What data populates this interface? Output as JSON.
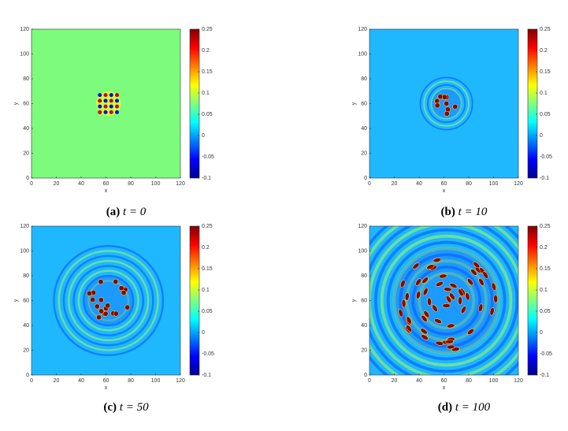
{
  "chart_data": [
    {
      "type": "heatmap",
      "label": "(a)",
      "equation": "t = 0",
      "xlabel": "x",
      "ylabel": "y",
      "xlim": [
        0,
        120
      ],
      "xticks": [
        0,
        20,
        40,
        60,
        80,
        100,
        120
      ],
      "ylim": [
        0,
        120
      ],
      "yticks": [
        0,
        20,
        40,
        60,
        80,
        100,
        120
      ],
      "clim": [
        -0.1,
        0.25
      ],
      "cticks": [
        -0.1,
        -0.05,
        0,
        0.05,
        0.1,
        0.15,
        0.2,
        0.25
      ],
      "colormap": "jet",
      "background_color": "#7dfb7d"
    },
    {
      "type": "heatmap",
      "label": "(b)",
      "equation": "t = 10",
      "xlabel": "x",
      "ylabel": "y",
      "xlim": [
        0,
        120
      ],
      "xticks": [
        0,
        20,
        40,
        60,
        80,
        100,
        120
      ],
      "ylim": [
        0,
        120
      ],
      "yticks": [
        0,
        20,
        40,
        60,
        80,
        100,
        120
      ],
      "clim": [
        -0.1,
        0.25
      ],
      "cticks": [
        -0.1,
        -0.05,
        0,
        0.05,
        0.1,
        0.15,
        0.2,
        0.25
      ],
      "colormap": "jet",
      "background_color": "#1fb8ff"
    },
    {
      "type": "heatmap",
      "label": "(c)",
      "equation": "t = 50",
      "xlabel": "x",
      "ylabel": "y",
      "xlim": [
        0,
        120
      ],
      "xticks": [
        0,
        20,
        40,
        60,
        80,
        100,
        120
      ],
      "ylim": [
        0,
        120
      ],
      "yticks": [
        0,
        20,
        40,
        60,
        80,
        100,
        120
      ],
      "clim": [
        -0.1,
        0.25
      ],
      "cticks": [
        -0.1,
        -0.05,
        0,
        0.05,
        0.1,
        0.15,
        0.2,
        0.25
      ],
      "colormap": "jet",
      "background_color": "#1fb8ff"
    },
    {
      "type": "heatmap",
      "label": "(d)",
      "equation": "t = 100",
      "xlabel": "x",
      "ylabel": "y",
      "xlim": [
        0,
        120
      ],
      "xticks": [
        0,
        20,
        40,
        60,
        80,
        100,
        120
      ],
      "ylim": [
        0,
        120
      ],
      "yticks": [
        0,
        20,
        40,
        60,
        80,
        100,
        120
      ],
      "clim": [
        -0.1,
        0.25
      ],
      "cticks": [
        -0.1,
        -0.05,
        0,
        0.05,
        0.1,
        0.15,
        0.2,
        0.25
      ],
      "colormap": "jet",
      "background_color": "#1fb8ff"
    }
  ]
}
